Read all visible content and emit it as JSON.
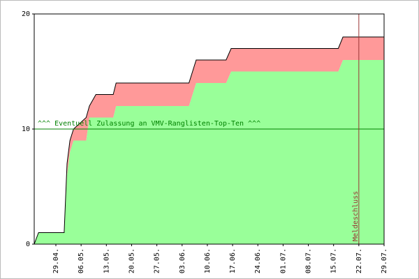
{
  "chart_data": {
    "type": "area",
    "stacked": true,
    "step": true,
    "x": [
      0,
      1.2,
      8.3,
      9.1,
      9.9,
      10.9,
      14.4,
      15.3,
      17.1,
      21.9,
      22.7,
      42.9,
      44.9,
      53.2,
      54.6,
      84.3,
      85.6,
      97
    ],
    "series": [
      {
        "color": "#99ff99",
        "values": [
          0,
          1,
          1,
          6,
          8,
          9,
          9,
          11,
          11,
          11,
          12,
          12,
          14,
          14,
          15,
          15,
          16,
          16
        ]
      },
      {
        "color": "#ff9999",
        "values": [
          0,
          0,
          0,
          1,
          1,
          1,
          2,
          1,
          2,
          2,
          2,
          2,
          2,
          2,
          2,
          2,
          2,
          2
        ]
      }
    ],
    "xlim": [
      0,
      97
    ],
    "xticks": [
      {
        "value": 6,
        "label": "29.04."
      },
      {
        "value": 13,
        "label": "06.05."
      },
      {
        "value": 20,
        "label": "13.05."
      },
      {
        "value": 27,
        "label": "20.05."
      },
      {
        "value": 34,
        "label": "27.05."
      },
      {
        "value": 41,
        "label": "03.06."
      },
      {
        "value": 48,
        "label": "10.06."
      },
      {
        "value": 55,
        "label": "17.06."
      },
      {
        "value": 62,
        "label": "24.06."
      },
      {
        "value": 69,
        "label": "01.07."
      },
      {
        "value": 76,
        "label": "08.07."
      },
      {
        "value": 83,
        "label": "15.07."
      },
      {
        "value": 90,
        "label": "22.07."
      },
      {
        "value": 97,
        "label": "29.07."
      }
    ],
    "ylim": [
      0,
      20
    ],
    "yticks": [
      0,
      10,
      20
    ],
    "hline": {
      "value": 10,
      "label": "^^^ Eventuell Zulassung an VMV-Ranglisten-Top-Ten ^^^",
      "color": "#008000"
    },
    "vline": {
      "value": 90,
      "label": "Meldeschluss",
      "color": "#993333"
    }
  }
}
